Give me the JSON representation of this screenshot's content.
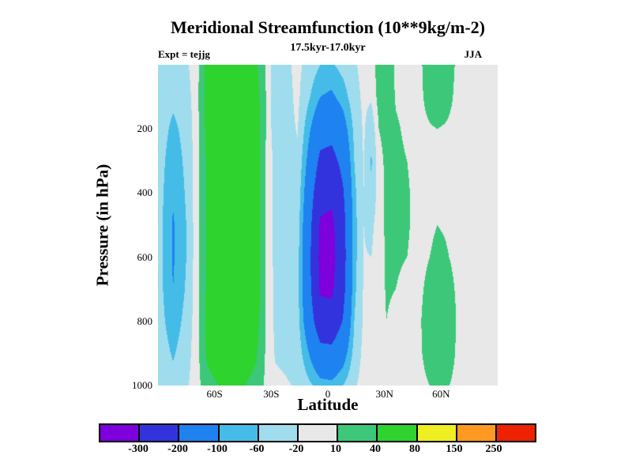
{
  "header": {
    "title": "Meridional Streamfunction (10**9kg/m-2)",
    "subtitle": "17.5kyr-17.0kyr",
    "experiment": "Expt = tejjg",
    "season": "JJA"
  },
  "axes": {
    "x": {
      "label": "Latitude",
      "range": [
        -90,
        90
      ],
      "ticks": [
        {
          "value": -60,
          "label": "60S"
        },
        {
          "value": -30,
          "label": "30S"
        },
        {
          "value": 0,
          "label": "0"
        },
        {
          "value": 30,
          "label": "30N"
        },
        {
          "value": 60,
          "label": "60N"
        }
      ]
    },
    "y": {
      "label": "Pressure (in hPa)",
      "range": [
        0,
        1000
      ],
      "ticks": [
        {
          "value": 200,
          "label": "200"
        },
        {
          "value": 400,
          "label": "400"
        },
        {
          "value": 600,
          "label": "600"
        },
        {
          "value": 800,
          "label": "800"
        },
        {
          "value": 1000,
          "label": "1000"
        }
      ]
    }
  },
  "colorbar": {
    "labels": [
      "-300",
      "-200",
      "-100",
      "-60",
      "-20",
      "10",
      "40",
      "80",
      "150",
      "250"
    ]
  },
  "chart_data": {
    "type": "heatmap",
    "title": "Meridional Streamfunction (10**9kg/m-2)",
    "xlabel": "Latitude",
    "ylabel": "Pressure (in hPa)",
    "lat_range": [
      -90,
      90
    ],
    "pressure_range": [
      0,
      1000
    ],
    "levels": [
      -300,
      -200,
      -100,
      -60,
      -20,
      10,
      40,
      80,
      150,
      250
    ],
    "colors": [
      "#7d00dd",
      "#3333dd",
      "#1e82f0",
      "#45bce8",
      "#9fdcee",
      "#e8e8e8",
      "#3cc878",
      "#2ed32e",
      "#eeee22",
      "#ff9922",
      "#ee2200"
    ],
    "background_color": "#e8e8e8",
    "grid": {
      "lat": [
        -90,
        -82,
        -75,
        -70,
        -64,
        -55,
        -45,
        -38,
        -33,
        -28,
        -22,
        -16,
        -10,
        -4,
        2,
        8,
        14,
        19,
        23,
        27,
        31,
        36,
        42,
        48,
        54,
        58,
        62,
        68,
        75,
        90
      ],
      "pressure": [
        0,
        100,
        200,
        300,
        400,
        500,
        600,
        700,
        800,
        900,
        1000
      ],
      "values": [
        [
          -25,
          -35,
          -25,
          -5,
          50,
          60,
          60,
          45,
          10,
          -45,
          -28,
          -10,
          -35,
          -60,
          -65,
          -45,
          -25,
          -8,
          -5,
          25,
          30,
          5,
          0,
          4,
          22,
          28,
          24,
          8,
          0,
          0
        ],
        [
          -30,
          -50,
          -35,
          -5,
          55,
          68,
          68,
          55,
          12,
          -48,
          -32,
          -12,
          -55,
          -100,
          -110,
          -80,
          -35,
          -12,
          -15,
          22,
          28,
          8,
          2,
          4,
          18,
          24,
          20,
          6,
          0,
          0
        ],
        [
          -35,
          -70,
          -45,
          -5,
          50,
          70,
          70,
          60,
          12,
          -40,
          -30,
          -18,
          -90,
          -160,
          -170,
          -130,
          -50,
          -15,
          -45,
          10,
          18,
          13,
          6,
          4,
          8,
          10,
          8,
          4,
          0,
          0
        ],
        [
          -38,
          -85,
          -50,
          -5,
          45,
          70,
          70,
          60,
          10,
          -30,
          -26,
          -25,
          -120,
          -220,
          -230,
          -175,
          -60,
          -18,
          -65,
          2,
          15,
          15,
          10,
          4,
          4,
          5,
          4,
          2,
          0,
          0
        ],
        [
          -40,
          -95,
          -55,
          -5,
          45,
          70,
          70,
          60,
          8,
          -28,
          -25,
          -32,
          -150,
          -270,
          -280,
          -210,
          -70,
          -20,
          -55,
          0,
          14,
          15,
          12,
          4,
          4,
          5,
          4,
          2,
          0,
          0
        ],
        [
          -40,
          -105,
          -60,
          -5,
          45,
          70,
          70,
          60,
          8,
          -28,
          -28,
          -40,
          -170,
          -310,
          -320,
          -235,
          -75,
          -20,
          -30,
          0,
          14,
          14,
          12,
          4,
          6,
          10,
          8,
          3,
          0,
          0
        ],
        [
          -40,
          -105,
          -60,
          -5,
          45,
          70,
          70,
          60,
          8,
          -28,
          -30,
          -46,
          -180,
          -320,
          -330,
          -240,
          -75,
          -18,
          -20,
          0,
          13,
          12,
          10,
          4,
          10,
          16,
          13,
          5,
          0,
          0
        ],
        [
          -40,
          -100,
          -55,
          -5,
          45,
          70,
          70,
          60,
          10,
          -28,
          -32,
          -48,
          -175,
          -310,
          -315,
          -230,
          -70,
          -16,
          -12,
          0,
          12,
          10,
          6,
          5,
          16,
          26,
          22,
          8,
          0,
          0
        ],
        [
          -38,
          -85,
          -45,
          -5,
          50,
          70,
          68,
          55,
          10,
          -26,
          -30,
          -45,
          -150,
          -260,
          -265,
          -195,
          -60,
          -14,
          -8,
          0,
          10,
          5,
          2,
          6,
          22,
          35,
          30,
          10,
          0,
          0
        ],
        [
          -32,
          -65,
          -35,
          -5,
          45,
          62,
          58,
          45,
          8,
          -22,
          -25,
          -35,
          -100,
          -170,
          -175,
          -130,
          -45,
          -10,
          -5,
          0,
          5,
          2,
          0,
          5,
          20,
          34,
          28,
          8,
          0,
          0
        ],
        [
          -25,
          -45,
          -25,
          -5,
          30,
          45,
          42,
          30,
          5,
          -15,
          -18,
          -22,
          -50,
          -80,
          -85,
          -60,
          -25,
          -6,
          -3,
          0,
          0,
          0,
          0,
          3,
          10,
          18,
          14,
          4,
          0,
          0
        ]
      ]
    }
  }
}
